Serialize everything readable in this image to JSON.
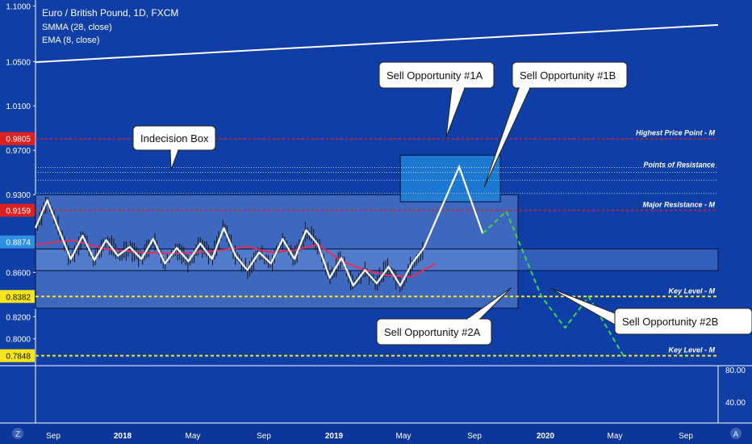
{
  "header": {
    "title": "Euro / British Pound, 1D, FXCM",
    "indicator_1": "SMMA (28, close)",
    "indicator_2": "EMA (8, close)"
  },
  "footer": {
    "left_badge": "Z",
    "right_badge": "A"
  },
  "colors": {
    "background": "#0f3ea6",
    "price_line": "#ffffff",
    "smma": "#e0305a",
    "red_level": "#e02020",
    "key_level": "#f5e51a",
    "projection": "#37d84a",
    "current_price": "#2b8fe3",
    "box_fill": "#5a7fcf"
  },
  "chart_data": {
    "type": "line",
    "title": "Euro / British Pound, 1D, FXCM",
    "ylim": [
      0.7758,
      1.1055
    ],
    "y_ticks": [
      "1.1000",
      "1.0500",
      "1.0100",
      "0.9700",
      "0.9300",
      "0.8600",
      "0.8200",
      "0.8000"
    ],
    "x_ticks": [
      "Sep",
      "2018",
      "May",
      "Sep",
      "2019",
      "May",
      "Sep",
      "2020",
      "May",
      "Sep"
    ],
    "price_tags": [
      {
        "label": "0.9805",
        "value": 0.9805,
        "color": "#e02020"
      },
      {
        "label": "0.9159",
        "value": 0.9159,
        "color": "#e02020"
      },
      {
        "label": "0.8874",
        "value": 0.8874,
        "color": "#2b8fe3"
      },
      {
        "label": "0.8382",
        "value": 0.8382,
        "color": "#f5e51a"
      },
      {
        "label": "0.7848",
        "value": 0.7848,
        "color": "#f5e51a"
      }
    ],
    "levels": [
      {
        "label": "Highest Price Point - M",
        "value": 0.9805,
        "style": "red-dotted"
      },
      {
        "label": "Points of Resistance",
        "value": 0.9518,
        "style": "white-dotted"
      },
      {
        "label": "Major Resistance - M",
        "value": 0.9159,
        "style": "red-dotted"
      },
      {
        "label": "Key Level - M",
        "value": 0.8382,
        "style": "yellow-dashed"
      },
      {
        "label": "Key Level - M",
        "value": 0.7848,
        "style": "yellow-dashed"
      }
    ],
    "callouts": [
      {
        "label": "Indecision Box"
      },
      {
        "label": "Sell Opportunity #1A"
      },
      {
        "label": "Sell Opportunity #1B"
      },
      {
        "label": "Sell Opportunity #2A"
      },
      {
        "label": "Sell Opportunity #2B"
      }
    ],
    "lower_pane": {
      "y_ticks": [
        "80.00",
        "40.00"
      ]
    },
    "series": [
      {
        "name": "price (close)",
        "x": [
          0,
          2,
          4,
          6,
          8,
          10,
          12,
          14,
          16,
          18,
          20,
          22,
          24,
          26,
          28,
          30,
          32,
          34,
          36,
          38,
          40,
          42,
          44,
          46,
          48,
          50,
          52,
          54,
          56,
          58,
          60,
          62,
          64,
          66
        ],
        "values": [
          0.9,
          0.925,
          0.898,
          0.872,
          0.893,
          0.871,
          0.889,
          0.875,
          0.883,
          0.872,
          0.89,
          0.868,
          0.882,
          0.87,
          0.886,
          0.872,
          0.9,
          0.875,
          0.862,
          0.878,
          0.868,
          0.89,
          0.872,
          0.898,
          0.885,
          0.855,
          0.873,
          0.848,
          0.862,
          0.85,
          0.865,
          0.848,
          0.868,
          0.882
        ]
      },
      {
        "name": "SMMA (28, close)",
        "x": [
          0,
          6,
          12,
          18,
          24,
          30,
          36,
          40,
          44,
          48,
          52,
          56,
          60,
          64,
          68
        ],
        "values": [
          0.885,
          0.889,
          0.881,
          0.878,
          0.877,
          0.879,
          0.883,
          0.878,
          0.88,
          0.885,
          0.87,
          0.862,
          0.857,
          0.856,
          0.868
        ]
      },
      {
        "name": "projected path #1",
        "x": [
          66,
          72,
          76
        ],
        "values": [
          0.882,
          0.955,
          0.895
        ]
      },
      {
        "name": "projected path #2",
        "x": [
          80,
          86,
          90,
          94,
          100
        ],
        "values": [
          0.915,
          0.838,
          0.81,
          0.838,
          0.784
        ]
      }
    ],
    "xlim": [
      0,
      116
    ],
    "long_term_line": {
      "x": [
        0,
        116
      ],
      "values": [
        1.0495,
        1.083
      ]
    },
    "boxes": [
      {
        "name": "indecision box",
        "x": [
          0,
          82
        ],
        "y": [
          0.8277,
          0.93
        ]
      },
      {
        "name": "resistance box",
        "x": [
          62,
          79
        ],
        "y": [
          0.9235,
          0.9655
        ]
      }
    ]
  }
}
